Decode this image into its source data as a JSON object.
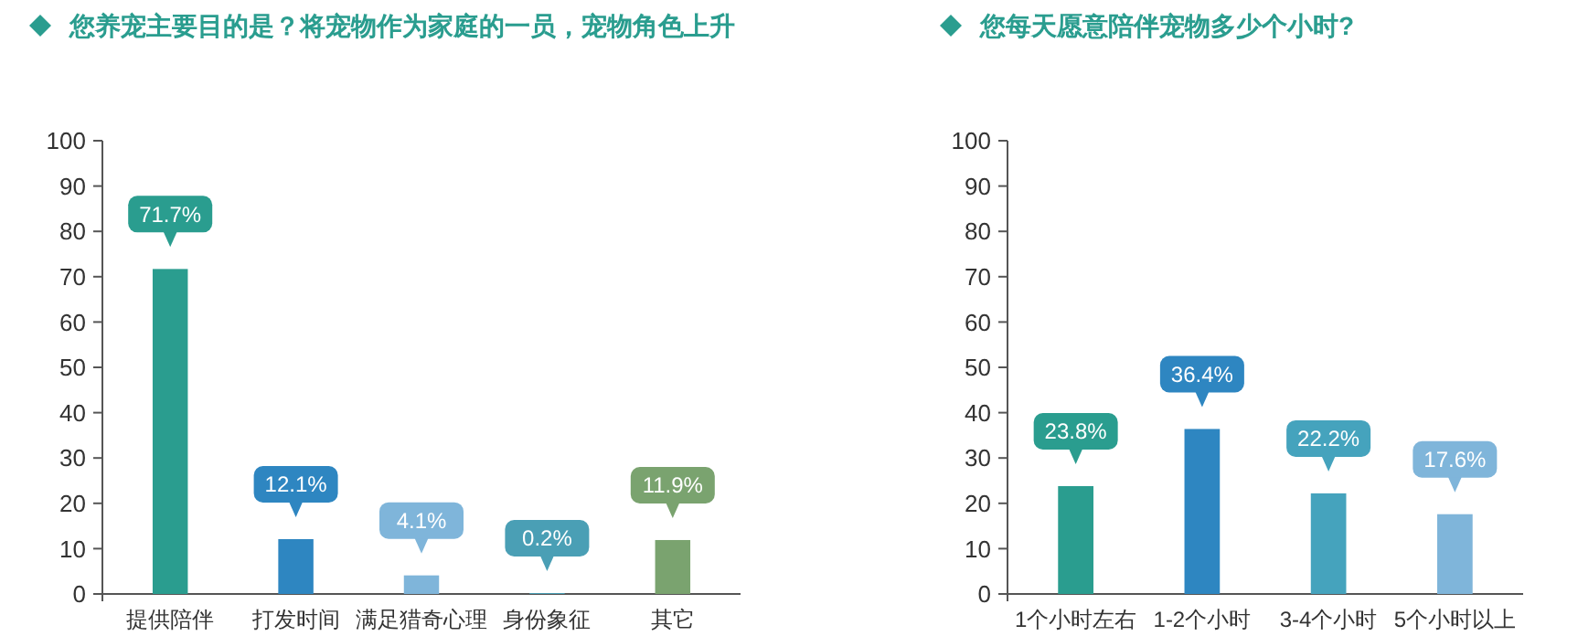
{
  "chart_data": [
    {
      "type": "bar",
      "title": "您养宠主要目的是？将宠物作为家庭的一员，宠物角色上升",
      "categories": [
        "提供陪伴",
        "打发时间",
        "满足猎奇心理",
        "身份象征",
        "其它"
      ],
      "values": [
        71.7,
        12.1,
        4.1,
        0.2,
        11.9
      ],
      "colors": [
        "#2a9d8f",
        "#2e86c1",
        "#7fb5da",
        "#4a9fb5",
        "#7aa36f"
      ],
      "value_labels": [
        "71.7%",
        "12.1%",
        "4.1%",
        "0.2%",
        "11.9%"
      ],
      "ylim": [
        0,
        100
      ],
      "yticks": [
        0,
        10,
        20,
        30,
        40,
        50,
        60,
        70,
        80,
        90,
        100
      ]
    },
    {
      "type": "bar",
      "title": "您每天愿意陪伴宠物多少个小时?",
      "categories": [
        "1个小时左右",
        "1-2个小时",
        "3-4个小时",
        "5个小时以上"
      ],
      "values": [
        23.8,
        36.4,
        22.2,
        17.6
      ],
      "colors": [
        "#2a9d8f",
        "#2e86c1",
        "#45a3bd",
        "#7fb5da"
      ],
      "value_labels": [
        "23.8%",
        "36.4%",
        "22.2%",
        "17.6%"
      ],
      "ylim": [
        0,
        100
      ],
      "yticks": [
        0,
        10,
        20,
        30,
        40,
        50,
        60,
        70,
        80,
        90,
        100
      ]
    }
  ]
}
